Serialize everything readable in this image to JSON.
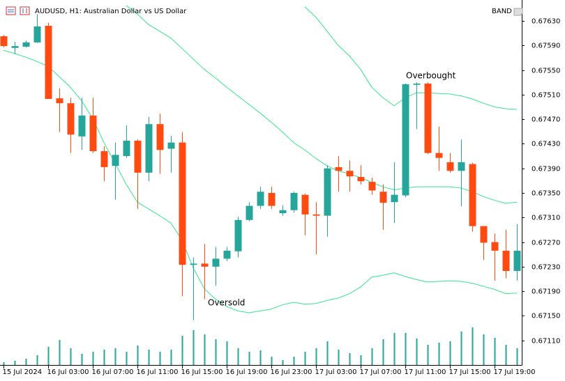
{
  "chart_data": {
    "type": "candlestick",
    "title": "AUDUSD, H1:  Australian Dollar vs US Dollar",
    "indicator": "BAND",
    "annotations": [
      "Overbought",
      "Oversold"
    ],
    "categories": [
      "15 Jul 2024",
      null,
      null,
      null,
      "16 Jul 03:00",
      null,
      null,
      null,
      "16 Jul 07:00",
      null,
      null,
      null,
      "16 Jul 11:00",
      null,
      null,
      null,
      "16 Jul 15:00",
      null,
      null,
      null,
      "16 Jul 19:00",
      null,
      null,
      null,
      "16 Jul 23:00",
      null,
      null,
      null,
      "17 Jul 03:00",
      null,
      null,
      null,
      "17 Jul 07:00",
      null,
      null,
      null,
      "17 Jul 11:00",
      null,
      null,
      null,
      "17 Jul 15:00",
      null,
      null,
      null,
      "17 Jul 19:00",
      null,
      null
    ],
    "open": [
      0.67605,
      0.67586,
      0.67588,
      0.67595,
      0.67622,
      0.67504,
      0.67496,
      0.67442,
      0.67476,
      0.67418,
      0.67394,
      0.6741,
      0.67435,
      0.67383,
      0.67462,
      0.67422,
      0.67432,
      0.67233,
      0.67235,
      0.6723,
      0.67243,
      0.67255,
      0.67306,
      0.67329,
      0.6735,
      0.67317,
      0.67322,
      0.67347,
      0.67315,
      0.67313,
      0.67392,
      0.67386,
      0.67376,
      0.67368,
      0.67352,
      0.67335,
      0.67346,
      0.67526,
      0.67528,
      0.67415,
      0.674,
      0.67386,
      0.67397,
      0.67296,
      0.6727,
      0.67256,
      0.67223
    ],
    "high": [
      0.67607,
      0.67596,
      0.67598,
      0.67641,
      0.67627,
      0.6752,
      0.67505,
      0.67505,
      0.67505,
      0.67426,
      0.67432,
      0.6746,
      0.67437,
      0.67474,
      0.67479,
      0.67443,
      0.67449,
      0.67245,
      0.67267,
      0.67262,
      0.67262,
      0.67311,
      0.67335,
      0.6736,
      0.6736,
      0.6733,
      0.67352,
      0.67349,
      0.67335,
      0.67395,
      0.6741,
      0.67403,
      0.67395,
      0.67375,
      0.67364,
      0.674,
      0.67528,
      0.6753,
      0.6753,
      0.67458,
      0.67415,
      0.67437,
      0.67399,
      0.67296,
      0.67284,
      0.6729,
      0.67299
    ],
    "low": [
      0.67587,
      0.67576,
      0.67587,
      0.67594,
      0.67503,
      0.67449,
      0.67415,
      0.6742,
      0.67415,
      0.67369,
      0.67339,
      0.67407,
      0.67324,
      0.67369,
      0.67381,
      0.67383,
      0.67182,
      0.67143,
      0.67177,
      0.67199,
      0.67239,
      0.67245,
      0.67304,
      0.67324,
      0.67324,
      0.67313,
      0.67318,
      0.67281,
      0.6725,
      0.67279,
      0.67352,
      0.67352,
      0.67364,
      0.67347,
      0.6729,
      0.67301,
      0.67343,
      0.67454,
      0.67413,
      0.67386,
      0.67383,
      0.67328,
      0.67287,
      0.67241,
      0.67207,
      0.67211,
      0.67207
    ],
    "close": [
      0.67589,
      0.67589,
      0.67595,
      0.67621,
      0.67503,
      0.67496,
      0.67445,
      0.67476,
      0.67418,
      0.67392,
      0.67412,
      0.67435,
      0.67383,
      0.67462,
      0.6742,
      0.67432,
      0.67233,
      0.67235,
      0.6723,
      0.67243,
      0.67256,
      0.67306,
      0.67329,
      0.67352,
      0.67329,
      0.67322,
      0.6735,
      0.67315,
      0.67313,
      0.6739,
      0.67386,
      0.67377,
      0.67369,
      0.67354,
      0.67334,
      0.67347,
      0.67527,
      0.67528,
      0.67415,
      0.67407,
      0.67386,
      0.674,
      0.67296,
      0.67269,
      0.67256,
      0.67223,
      0.67256
    ],
    "up_color": "#26a69a",
    "down_color": "#ff4a12",
    "lines": [
      {
        "color": "#33e88a",
        "values": [
          0.67582,
          0.67577,
          0.67571,
          0.67564,
          0.67556,
          0.67539,
          0.67522,
          0.675,
          0.67471,
          0.67432,
          0.67398,
          0.67364,
          0.67335,
          0.67324,
          0.67313,
          0.67301,
          0.67273,
          0.67228,
          0.67194,
          0.67177,
          0.67165,
          0.67158,
          0.67155,
          0.67158,
          0.67161,
          0.67168,
          0.67172,
          0.67169,
          0.6717,
          0.67175,
          0.67179,
          0.67186,
          0.67197,
          0.67213,
          0.67216,
          0.6722,
          0.67214,
          0.67209,
          0.67205,
          0.67206,
          0.67207,
          0.67206,
          0.67203,
          0.67198,
          0.67193,
          0.67186,
          0.67187
        ]
      },
      {
        "color": "#33e88a",
        "values": [
          null,
          null,
          null,
          null,
          null,
          null,
          null,
          null,
          null,
          null,
          null,
          0.67655,
          0.67641,
          0.67624,
          0.67613,
          0.67602,
          0.67585,
          0.67568,
          0.67551,
          0.67537,
          0.67522,
          0.67508,
          0.67494,
          0.6748,
          0.67465,
          0.67449,
          0.67432,
          0.6742,
          0.67406,
          0.67394,
          0.67386,
          0.67381,
          0.67375,
          0.67367,
          0.6736,
          0.67355,
          0.67358,
          0.6736,
          0.6736,
          0.6736,
          0.6736,
          0.67358,
          0.67352,
          0.67344,
          0.67338,
          0.67333,
          0.67335
        ]
      },
      {
        "color": "#33e88a",
        "values": [
          null,
          null,
          null,
          null,
          null,
          null,
          null,
          null,
          null,
          null,
          null,
          null,
          null,
          null,
          null,
          null,
          null,
          null,
          null,
          null,
          null,
          null,
          null,
          null,
          null,
          null,
          null,
          0.67653,
          0.67636,
          0.67613,
          0.6759,
          0.67573,
          0.67551,
          0.67522,
          0.67505,
          0.67492,
          0.67505,
          0.67513,
          0.67513,
          0.67512,
          0.67511,
          0.67508,
          0.67503,
          0.67496,
          0.6749,
          0.67487,
          0.67486
        ]
      }
    ],
    "volume": {
      "color": "#26a69a",
      "lim": [
        0,
        10000
      ],
      "values": [
        400,
        600,
        900,
        1400,
        2600,
        3600,
        2400,
        1600,
        1900,
        2200,
        2400,
        1900,
        2800,
        2200,
        1900,
        2200,
        4200,
        5000,
        4400,
        3700,
        3400,
        2400,
        1900,
        2100,
        1200,
        700,
        1200,
        1900,
        2400,
        3400,
        2200,
        1700,
        1400,
        2400,
        3700,
        4600,
        4600,
        3800,
        2900,
        3200,
        3400,
        4800,
        5400,
        4400,
        3900,
        2900,
        2400
      ]
    },
    "ylim": [
      0.6707,
      0.67664
    ],
    "yticks": [
      {
        "value": 0.6763,
        "label": "0.67630"
      },
      {
        "value": 0.6759,
        "label": "0.67590"
      },
      {
        "value": 0.6755,
        "label": "0.67550"
      },
      {
        "value": 0.6751,
        "label": "0.67510"
      },
      {
        "value": 0.6747,
        "label": "0.67470"
      },
      {
        "value": 0.6743,
        "label": "0.67430"
      },
      {
        "value": 0.6739,
        "label": "0.67390"
      },
      {
        "value": 0.6735,
        "label": "0.67350"
      },
      {
        "value": 0.6731,
        "label": "0.67310"
      },
      {
        "value": 0.6727,
        "label": "0.67270"
      },
      {
        "value": 0.6723,
        "label": "0.67230"
      },
      {
        "value": 0.6719,
        "label": "0.67190"
      },
      {
        "value": 0.6715,
        "label": "0.67150"
      },
      {
        "value": 0.6711,
        "label": "0.67110"
      }
    ]
  }
}
